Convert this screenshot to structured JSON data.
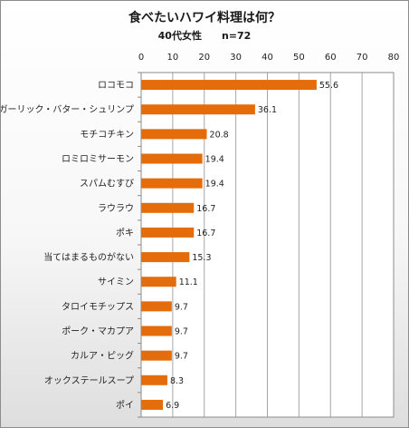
{
  "chart_data": {
    "type": "bar",
    "orientation": "horizontal",
    "title": "食べたいハワイ料理は何？",
    "subtitle": "40代女性　　n=72",
    "categories": [
      "ロコモコ",
      "ガーリック・バター・シュリンプ",
      "モチコチキン",
      "ロミロミサーモン",
      "スパムむすび",
      "ラウラウ",
      "ポキ",
      "当てはまるものがない",
      "サイミン",
      "タロイモチップス",
      "ポーク・マカプア",
      "カルア・ピッグ",
      "オックステールスープ",
      "ポイ"
    ],
    "values": [
      55.6,
      36.1,
      20.8,
      19.4,
      19.4,
      16.7,
      16.7,
      15.3,
      11.1,
      9.7,
      9.7,
      9.7,
      8.3,
      6.9
    ],
    "value_labels": [
      "55.6",
      "36.1",
      "20.8",
      "19.4",
      "19.4",
      "16.7",
      "16.7",
      "15.3",
      "11.1",
      "9.7",
      "9.7",
      "9.7",
      "8.3",
      "6.9"
    ],
    "xlim": [
      0,
      80
    ],
    "ticks": [
      0,
      10,
      20,
      30,
      40,
      50,
      60,
      70,
      80
    ],
    "tick_labels": [
      "0",
      "10",
      "20",
      "30",
      "40",
      "50",
      "60",
      "70",
      "80"
    ],
    "axis_position": "top",
    "grid": true,
    "bar_color": "#e46c0a",
    "grid_color": "#a6a6a6"
  }
}
